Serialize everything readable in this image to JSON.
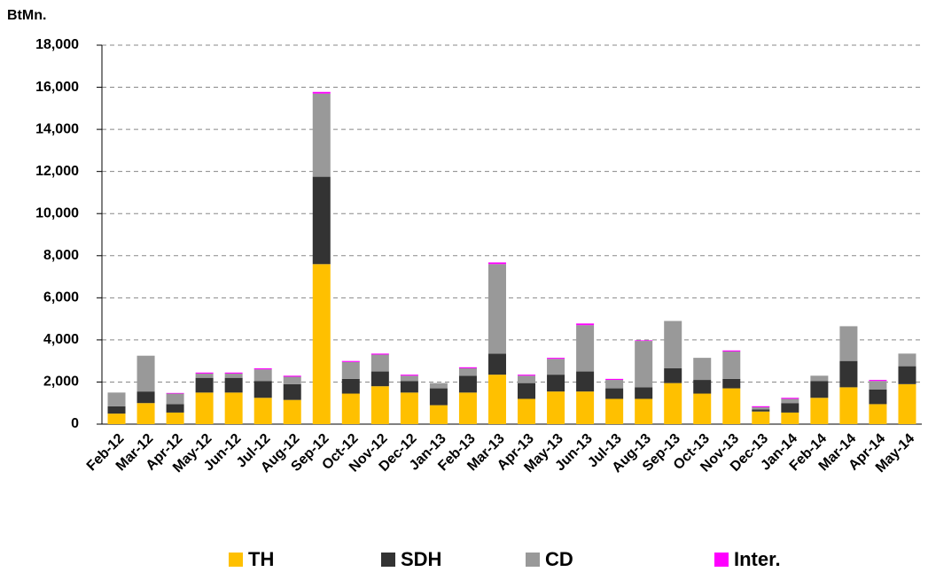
{
  "chart_data": {
    "type": "stacked_bar",
    "y_label": "BtMn.",
    "categories": [
      "Feb-12",
      "Mar-12",
      "Apr-12",
      "May-12",
      "Jun-12",
      "Jul-12",
      "Aug-12",
      "Sep-12",
      "Oct-12",
      "Nov-12",
      "Dec-12",
      "Jan-13",
      "Feb-13",
      "Mar-13",
      "Apr-13",
      "May-13",
      "Jun-13",
      "Jul-13",
      "Aug-13",
      "Sep-13",
      "Oct-13",
      "Nov-13",
      "Dec-13",
      "Jan-14",
      "Feb-14",
      "Mar-14",
      "Apr-14",
      "May-14"
    ],
    "series": [
      {
        "name": "TH",
        "color": "#FFC000",
        "values": [
          500,
          1000,
          550,
          1500,
          1500,
          1250,
          1150,
          7600,
          1450,
          1800,
          1500,
          900,
          1500,
          2350,
          1200,
          1550,
          1550,
          1200,
          1200,
          1950,
          1450,
          1700,
          600,
          550,
          1250,
          1750,
          950,
          1900
        ]
      },
      {
        "name": "SDH",
        "color": "#333333",
        "values": [
          350,
          550,
          400,
          700,
          700,
          800,
          750,
          4150,
          700,
          700,
          550,
          800,
          800,
          1000,
          750,
          800,
          950,
          500,
          550,
          700,
          650,
          450,
          100,
          450,
          800,
          1250,
          700,
          850
        ]
      },
      {
        "name": "CD",
        "color": "#999999",
        "values": [
          650,
          1700,
          500,
          200,
          200,
          550,
          350,
          3950,
          800,
          800,
          250,
          250,
          350,
          4250,
          350,
          750,
          2200,
          400,
          2200,
          2250,
          1050,
          1300,
          100,
          200,
          250,
          1650,
          400,
          600
        ]
      },
      {
        "name": "Inter.",
        "color": "#FF00FF",
        "values": [
          0,
          0,
          30,
          50,
          50,
          50,
          50,
          80,
          50,
          50,
          50,
          0,
          50,
          80,
          50,
          50,
          80,
          50,
          30,
          0,
          0,
          50,
          50,
          50,
          0,
          0,
          50,
          0
        ]
      }
    ],
    "ylim": [
      0,
      18000
    ],
    "yticks": [
      0,
      {
        "value": 2000,
        "label": "2,000"
      },
      {
        "value": 4000,
        "label": "4,000"
      },
      {
        "value": 6000,
        "label": "6,000"
      },
      {
        "value": 8000,
        "label": "8,000"
      },
      {
        "value": 10000,
        "label": "10,000"
      },
      {
        "value": 12000,
        "label": "12,000"
      },
      {
        "value": 14000,
        "label": "14,000"
      },
      {
        "value": 16000,
        "label": "16,000"
      },
      {
        "value": 18000,
        "label": "18,000"
      }
    ],
    "grid": true,
    "legend": "bottom"
  }
}
